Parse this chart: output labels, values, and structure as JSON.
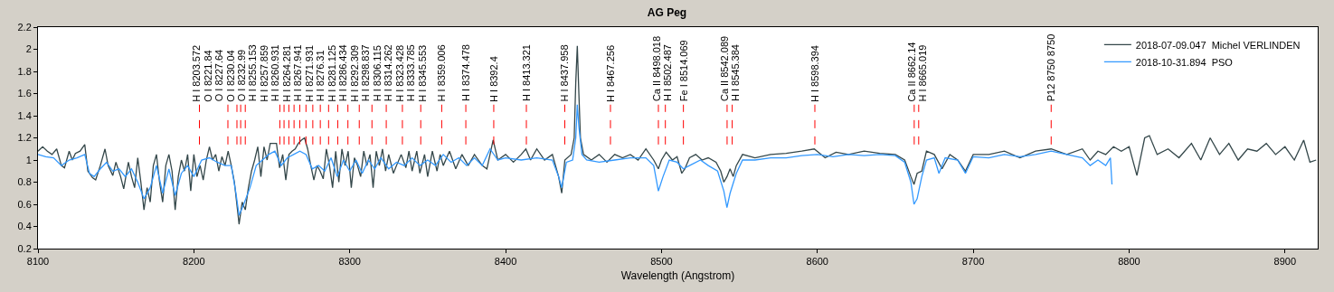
{
  "chart_data": {
    "type": "line",
    "title": "AG Peg",
    "xlabel": "Wavelength (Angstrom)",
    "xlim": [
      8100,
      8921
    ],
    "xticks": [
      8100,
      8200,
      8300,
      8400,
      8500,
      8600,
      8700,
      8800,
      8900
    ],
    "ylim": [
      0.2,
      2.2
    ],
    "yticks": [
      0.2,
      0.4,
      0.6,
      0.8,
      1,
      1.2,
      1.4,
      1.6,
      1.8,
      2,
      2.2
    ],
    "legend": "top right",
    "marker": "none",
    "line_style": "solid",
    "series": [
      {
        "name": "2018-07-09.047  Michel VERLINDEN",
        "color": "#34474a",
        "x": [
          8100,
          8103,
          8106,
          8109,
          8112,
          8115,
          8117,
          8120,
          8122,
          8124,
          8127,
          8130,
          8132,
          8135,
          8137,
          8140,
          8143,
          8145,
          8148,
          8150,
          8153,
          8155,
          8158,
          8160,
          8162,
          8164,
          8166,
          8168,
          8170,
          8172,
          8174,
          8176,
          8178,
          8180,
          8182,
          8184,
          8186,
          8188,
          8190,
          8192,
          8194,
          8196,
          8198,
          8200,
          8202,
          8204,
          8206,
          8208,
          8210,
          8212,
          8214,
          8216,
          8218,
          8220,
          8222,
          8224,
          8226,
          8228,
          8229,
          8231,
          8233,
          8235,
          8237,
          8239,
          8241,
          8243,
          8245,
          8247,
          8249,
          8251,
          8253,
          8255,
          8257,
          8259,
          8261,
          8263,
          8265,
          8267,
          8269,
          8271,
          8273,
          8275,
          8277,
          8279,
          8281,
          8283,
          8285,
          8287,
          8289,
          8291,
          8293,
          8295,
          8297,
          8299,
          8301,
          8303,
          8305,
          8307,
          8309,
          8311,
          8313,
          8315,
          8317,
          8319,
          8321,
          8323,
          8325,
          8328,
          8330,
          8333,
          8336,
          8338,
          8340,
          8343,
          8345,
          8348,
          8350,
          8353,
          8356,
          8358,
          8360,
          8364,
          8368,
          8372,
          8376,
          8380,
          8385,
          8388,
          8392,
          8395,
          8400,
          8405,
          8410,
          8413,
          8416,
          8420,
          8425,
          8430,
          8434,
          8436,
          8438,
          8442,
          8444,
          8445,
          8446,
          8447,
          8448,
          8450,
          8455,
          8460,
          8465,
          8470,
          8475,
          8480,
          8485,
          8490,
          8495,
          8498,
          8500,
          8503,
          8507,
          8510,
          8513,
          8515,
          8518,
          8522,
          8526,
          8530,
          8535,
          8538,
          8540,
          8542,
          8544,
          8546,
          8548,
          8552,
          8560,
          8570,
          8580,
          8590,
          8598,
          8605,
          8612,
          8620,
          8630,
          8640,
          8650,
          8656,
          8660,
          8662,
          8664,
          8667,
          8670,
          8675,
          8680,
          8685,
          8690,
          8695,
          8700,
          8710,
          8720,
          8730,
          8740,
          8750,
          8760,
          8770,
          8775,
          8780,
          8785,
          8790,
          8795,
          8800,
          8805,
          8810,
          8813,
          8818,
          8825,
          8832,
          8840,
          8846,
          8852,
          8858,
          8864,
          8870,
          8876,
          8882,
          8888,
          8894,
          8900,
          8906,
          8912,
          8916,
          8920
        ],
        "values": [
          1.08,
          1.12,
          1.08,
          1.05,
          1.1,
          0.95,
          0.93,
          1.08,
          1.0,
          1.06,
          1.08,
          1.14,
          0.9,
          0.84,
          0.82,
          0.95,
          1.1,
          0.95,
          0.86,
          0.98,
          0.85,
          0.74,
          0.98,
          0.85,
          0.75,
          1.02,
          0.8,
          0.55,
          0.75,
          0.62,
          0.95,
          1.05,
          0.8,
          0.62,
          0.95,
          1.05,
          0.9,
          0.55,
          0.85,
          1.0,
          0.9,
          1.05,
          0.72,
          1.05,
          0.85,
          0.95,
          0.82,
          1.0,
          1.12,
          1.0,
          1.05,
          0.9,
          1.03,
          0.95,
          1.08,
          0.95,
          0.8,
          0.55,
          0.42,
          0.62,
          0.55,
          0.75,
          0.9,
          1.0,
          1.12,
          0.85,
          1.12,
          1.0,
          1.15,
          1.15,
          1.15,
          0.93,
          1.05,
          0.82,
          1.05,
          1.08,
          1.1,
          1.15,
          1.18,
          1.2,
          1.1,
          0.95,
          0.82,
          0.95,
          0.9,
          0.83,
          1.1,
          0.95,
          0.75,
          1.08,
          0.8,
          1.1,
          0.95,
          1.08,
          0.75,
          1.02,
          0.95,
          0.85,
          1.08,
          0.95,
          1.05,
          0.75,
          1.08,
          0.95,
          1.1,
          0.9,
          1.05,
          0.88,
          0.95,
          1.05,
          0.93,
          1.08,
          0.9,
          1.08,
          0.88,
          1.05,
          0.85,
          1.08,
          0.9,
          1.05,
          0.95,
          1.08,
          0.92,
          1.05,
          0.95,
          1.05,
          0.95,
          0.92,
          1.18,
          1.0,
          1.05,
          0.98,
          1.05,
          1.1,
          1.0,
          1.1,
          1.0,
          1.05,
          0.85,
          0.7,
          1.0,
          1.05,
          1.2,
          1.7,
          2.03,
          1.6,
          1.2,
          1.05,
          1.0,
          1.05,
          0.98,
          1.05,
          1.02,
          1.05,
          1.0,
          1.1,
          1.0,
          0.92,
          1.0,
          1.07,
          1.0,
          1.03,
          0.88,
          0.92,
          1.02,
          1.05,
          1.0,
          1.02,
          0.98,
          0.9,
          0.8,
          0.85,
          0.92,
          0.85,
          0.95,
          1.05,
          1.02,
          1.05,
          1.06,
          1.08,
          1.1,
          1.02,
          1.07,
          1.05,
          1.08,
          1.06,
          1.05,
          1.0,
          0.85,
          0.78,
          0.88,
          0.9,
          1.08,
          1.05,
          0.92,
          1.05,
          1.0,
          0.9,
          1.05,
          1.05,
          1.08,
          1.02,
          1.08,
          1.1,
          1.05,
          1.1,
          1.0,
          1.08,
          1.05,
          1.12,
          1.08,
          1.12,
          0.86,
          1.2,
          1.22,
          1.05,
          1.1,
          1.02,
          1.15,
          1.0,
          1.2,
          1.05,
          1.15,
          1.0,
          1.1,
          1.08,
          1.15,
          1.05,
          1.12,
          1.0,
          1.18,
          0.98,
          1.0
        ]
      },
      {
        "name": "2018-10-31.894  PSO",
        "color": "#3399ff",
        "x": [
          8100,
          8105,
          8110,
          8115,
          8120,
          8125,
          8130,
          8133,
          8136,
          8140,
          8144,
          8148,
          8152,
          8156,
          8160,
          8164,
          8168,
          8172,
          8176,
          8180,
          8184,
          8188,
          8192,
          8196,
          8200,
          8205,
          8210,
          8215,
          8220,
          8224,
          8227,
          8229,
          8232,
          8236,
          8240,
          8244,
          8248,
          8252,
          8256,
          8260,
          8264,
          8268,
          8272,
          8276,
          8280,
          8284,
          8288,
          8292,
          8296,
          8300,
          8304,
          8308,
          8312,
          8316,
          8320,
          8325,
          8330,
          8335,
          8340,
          8345,
          8350,
          8355,
          8360,
          8365,
          8370,
          8375,
          8380,
          8385,
          8390,
          8395,
          8400,
          8410,
          8420,
          8430,
          8434,
          8436,
          8439,
          8443,
          8445,
          8446,
          8447,
          8449,
          8452,
          8460,
          8470,
          8480,
          8490,
          8495,
          8498,
          8501,
          8505,
          8510,
          8514,
          8518,
          8525,
          8530,
          8536,
          8540,
          8542,
          8544,
          8548,
          8552,
          8560,
          8570,
          8580,
          8590,
          8600,
          8610,
          8620,
          8630,
          8640,
          8650,
          8656,
          8660,
          8662,
          8664,
          8667,
          8670,
          8675,
          8678,
          8682,
          8690,
          8695,
          8700,
          8710,
          8720,
          8730,
          8740,
          8750,
          8760,
          8770,
          8775,
          8780,
          8785,
          8788,
          8789
        ],
        "values": [
          1.05,
          1.03,
          1.02,
          0.95,
          1.0,
          1.02,
          1.05,
          0.88,
          0.85,
          0.92,
          0.98,
          0.9,
          0.92,
          0.85,
          0.92,
          0.8,
          0.65,
          0.75,
          0.95,
          0.7,
          0.92,
          0.68,
          0.88,
          0.95,
          0.85,
          1.0,
          1.02,
          0.98,
          0.95,
          0.95,
          0.7,
          0.5,
          0.6,
          0.75,
          0.95,
          1.0,
          1.05,
          1.08,
          0.95,
          1.02,
          1.05,
          1.08,
          1.05,
          0.92,
          0.95,
          0.9,
          1.02,
          0.85,
          1.0,
          0.9,
          1.0,
          0.88,
          1.0,
          0.92,
          1.02,
          0.92,
          0.98,
          0.95,
          1.02,
          0.95,
          1.0,
          0.95,
          1.05,
          0.98,
          1.02,
          0.95,
          1.02,
          0.95,
          1.1,
          1.0,
          1.02,
          1.0,
          1.02,
          1.0,
          0.85,
          0.75,
          0.98,
          1.0,
          1.2,
          1.5,
          1.3,
          1.05,
          1.0,
          0.98,
          1.0,
          1.02,
          1.02,
          0.95,
          0.72,
          0.85,
          1.0,
          0.98,
          0.92,
          0.95,
          1.0,
          0.95,
          0.9,
          0.72,
          0.57,
          0.7,
          0.88,
          1.0,
          1.0,
          1.02,
          1.02,
          1.04,
          1.05,
          1.03,
          1.05,
          1.04,
          1.05,
          1.04,
          0.98,
          0.8,
          0.6,
          0.65,
          0.85,
          1.0,
          1.02,
          0.88,
          1.02,
          1.0,
          0.88,
          1.03,
          1.02,
          1.05,
          1.03,
          1.05,
          1.08,
          1.05,
          1.02,
          0.95,
          1.0,
          0.95,
          1.02,
          0.78
        ]
      }
    ],
    "ref_lines": [
      {
        "axis": "x",
        "value": 8203.572,
        "label": "H I 8203.572",
        "color": "#ff0000",
        "line_style": "dashed"
      },
      {
        "axis": "x",
        "value": 8221.84,
        "label": "O I 8221.84",
        "color": "#ff0000",
        "line_style": "dashed"
      },
      {
        "axis": "x",
        "value": 8227.64,
        "label": "O I 8227.64",
        "color": "#ff0000",
        "line_style": "dashed"
      },
      {
        "axis": "x",
        "value": 8230.04,
        "label": "O I 8230.04",
        "color": "#ff0000",
        "line_style": "dashed"
      },
      {
        "axis": "x",
        "value": 8232.99,
        "label": "O I 8232.99",
        "color": "#ff0000",
        "line_style": "dashed"
      },
      {
        "axis": "x",
        "value": 8255.153,
        "label": "H I 8255.153",
        "color": "#ff0000",
        "line_style": "dashed"
      },
      {
        "axis": "x",
        "value": 8257.859,
        "label": "H I 8257.859",
        "color": "#ff0000",
        "line_style": "dashed"
      },
      {
        "axis": "x",
        "value": 8260.931,
        "label": "H I 8260.931",
        "color": "#ff0000",
        "line_style": "dashed"
      },
      {
        "axis": "x",
        "value": 8264.281,
        "label": "H I 8264.281",
        "color": "#ff0000",
        "line_style": "dashed"
      },
      {
        "axis": "x",
        "value": 8267.941,
        "label": "H I 8267.941",
        "color": "#ff0000",
        "line_style": "dashed"
      },
      {
        "axis": "x",
        "value": 8271.931,
        "label": "H I 8271.931",
        "color": "#ff0000",
        "line_style": "dashed"
      },
      {
        "axis": "x",
        "value": 8276.31,
        "label": "H I 8276.31",
        "color": "#ff0000",
        "line_style": "dashed"
      },
      {
        "axis": "x",
        "value": 8281.125,
        "label": "H I 8281.125",
        "color": "#ff0000",
        "line_style": "dashed"
      },
      {
        "axis": "x",
        "value": 8286.434,
        "label": "H I 8286.434",
        "color": "#ff0000",
        "line_style": "dashed"
      },
      {
        "axis": "x",
        "value": 8292.309,
        "label": "H I 8292.309",
        "color": "#ff0000",
        "line_style": "dashed"
      },
      {
        "axis": "x",
        "value": 8298.837,
        "label": "H I 8298.837",
        "color": "#ff0000",
        "line_style": "dashed"
      },
      {
        "axis": "x",
        "value": 8306.115,
        "label": "H I 8306.115",
        "color": "#ff0000",
        "line_style": "dashed"
      },
      {
        "axis": "x",
        "value": 8314.262,
        "label": "H I 8314.262",
        "color": "#ff0000",
        "line_style": "dashed"
      },
      {
        "axis": "x",
        "value": 8323.428,
        "label": "H I 8323.428",
        "color": "#ff0000",
        "line_style": "dashed"
      },
      {
        "axis": "x",
        "value": 8333.785,
        "label": "H I 8333.785",
        "color": "#ff0000",
        "line_style": "dashed"
      },
      {
        "axis": "x",
        "value": 8345.553,
        "label": "H I 8345.553",
        "color": "#ff0000",
        "line_style": "dashed"
      },
      {
        "axis": "x",
        "value": 8359.006,
        "label": "H I 8359.006",
        "color": "#ff0000",
        "line_style": "dashed"
      },
      {
        "axis": "x",
        "value": 8374.478,
        "label": "H I 8374.478",
        "color": "#ff0000",
        "line_style": "dashed"
      },
      {
        "axis": "x",
        "value": 8392.4,
        "label": "H I 8392.4",
        "color": "#ff0000",
        "line_style": "dashed"
      },
      {
        "axis": "x",
        "value": 8413.321,
        "label": "H I 8413.321",
        "color": "#ff0000",
        "line_style": "dashed"
      },
      {
        "axis": "x",
        "value": 8437.958,
        "label": "H I 8437.958",
        "color": "#ff0000",
        "line_style": "dashed"
      },
      {
        "axis": "x",
        "value": 8467.256,
        "label": "H I 8467.256",
        "color": "#ff0000",
        "line_style": "dashed"
      },
      {
        "axis": "x",
        "value": 8498.018,
        "label": "Ca II 8498.018",
        "color": "#ff0000",
        "line_style": "dashed"
      },
      {
        "axis": "x",
        "value": 8502.487,
        "label": "H I 8502.487",
        "color": "#ff0000",
        "line_style": "dashed"
      },
      {
        "axis": "x",
        "value": 8514.069,
        "label": "Fe I 8514.069",
        "color": "#ff0000",
        "line_style": "dashed"
      },
      {
        "axis": "x",
        "value": 8542.089,
        "label": "Ca II 8542.089",
        "color": "#ff0000",
        "line_style": "dashed"
      },
      {
        "axis": "x",
        "value": 8545.384,
        "label": "H I 8545.384",
        "color": "#ff0000",
        "line_style": "dashed"
      },
      {
        "axis": "x",
        "value": 8598.394,
        "label": "H I 8598.394",
        "color": "#ff0000",
        "line_style": "dashed"
      },
      {
        "axis": "x",
        "value": 8662.14,
        "label": "Ca II 8662.14",
        "color": "#ff0000",
        "line_style": "dashed"
      },
      {
        "axis": "x",
        "value": 8665.019,
        "label": "H I 8665.019",
        "color": "#ff0000",
        "line_style": "dashed"
      },
      {
        "axis": "x",
        "value": 8750,
        "label": "P12 8750 8750",
        "color": "#ff0000",
        "line_style": "dashed"
      }
    ]
  }
}
